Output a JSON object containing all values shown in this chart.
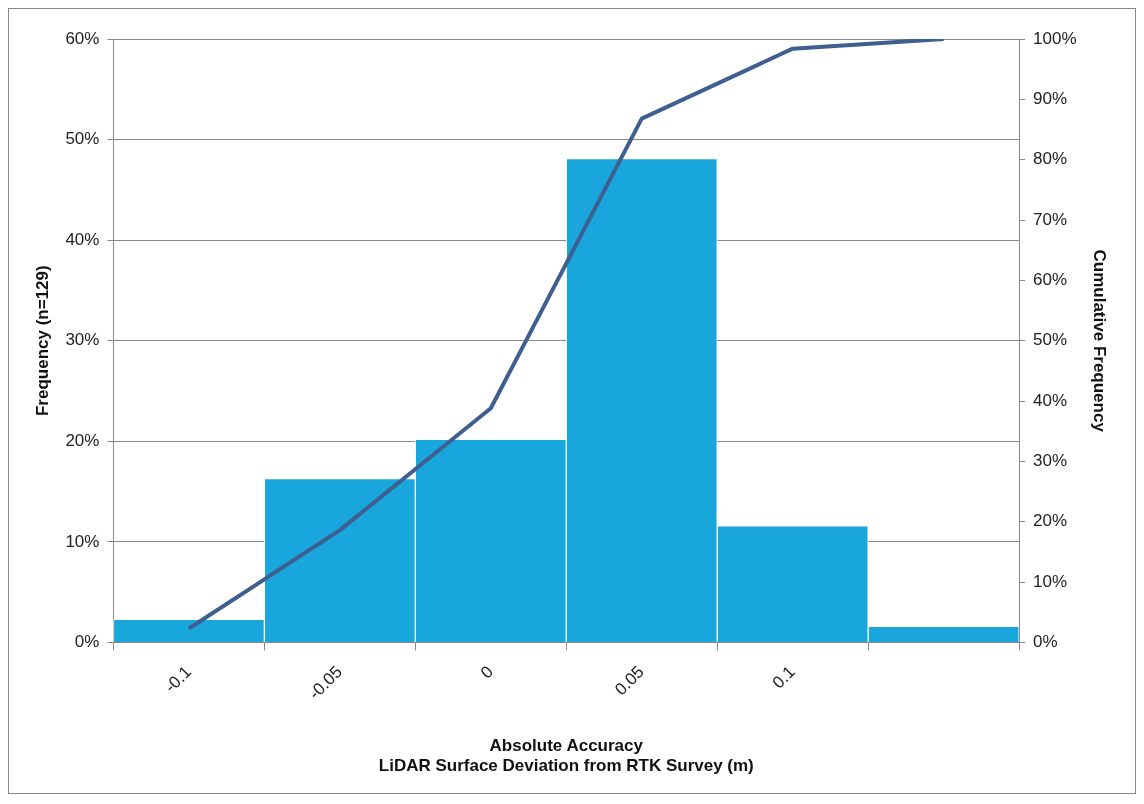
{
  "chart_data": {
    "type": "bar",
    "xlabel": "Absolute Accuracy\nLiDAR Surface Deviation from RTK Survey (m)",
    "ylabel": "Frequency (n=129)",
    "y2label": "Cumulative Frequency",
    "categories": [
      "-0.1",
      "-0.05",
      "0",
      "0.05",
      "0.1",
      null
    ],
    "series": [
      {
        "color": "#18a6dc",
        "values": [
          2.3,
          16.3,
          20.2,
          48.1,
          11.6,
          1.6
        ]
      },
      {
        "type": "line",
        "axis": "y2",
        "color": "#3e5f8f",
        "values": [
          2.3,
          18.6,
          38.8,
          86.8,
          98.4,
          100
        ]
      }
    ],
    "ylim": [
      0,
      60
    ],
    "yticks": [
      {
        "value": 0,
        "label": "0%"
      },
      {
        "value": 10,
        "label": "10%"
      },
      {
        "value": 20,
        "label": "20%"
      },
      {
        "value": 30,
        "label": "30%"
      },
      {
        "value": 40,
        "label": "40%"
      },
      {
        "value": 50,
        "label": "50%"
      },
      {
        "value": 60,
        "label": "60%"
      }
    ],
    "y2lim": [
      0,
      100
    ],
    "y2ticks": [
      {
        "value": 0,
        "label": "0%"
      },
      {
        "value": 10,
        "label": "10%"
      },
      {
        "value": 20,
        "label": "20%"
      },
      {
        "value": 30,
        "label": "30%"
      },
      {
        "value": 40,
        "label": "40%"
      },
      {
        "value": 50,
        "label": "50%"
      },
      {
        "value": 60,
        "label": "60%"
      },
      {
        "value": 70,
        "label": "70%"
      },
      {
        "value": 80,
        "label": "80%"
      },
      {
        "value": 90,
        "label": "90%"
      },
      {
        "value": 100,
        "label": "100%"
      }
    ],
    "grid": "y",
    "legend": false,
    "marker": "none",
    "line_style": "solid"
  }
}
